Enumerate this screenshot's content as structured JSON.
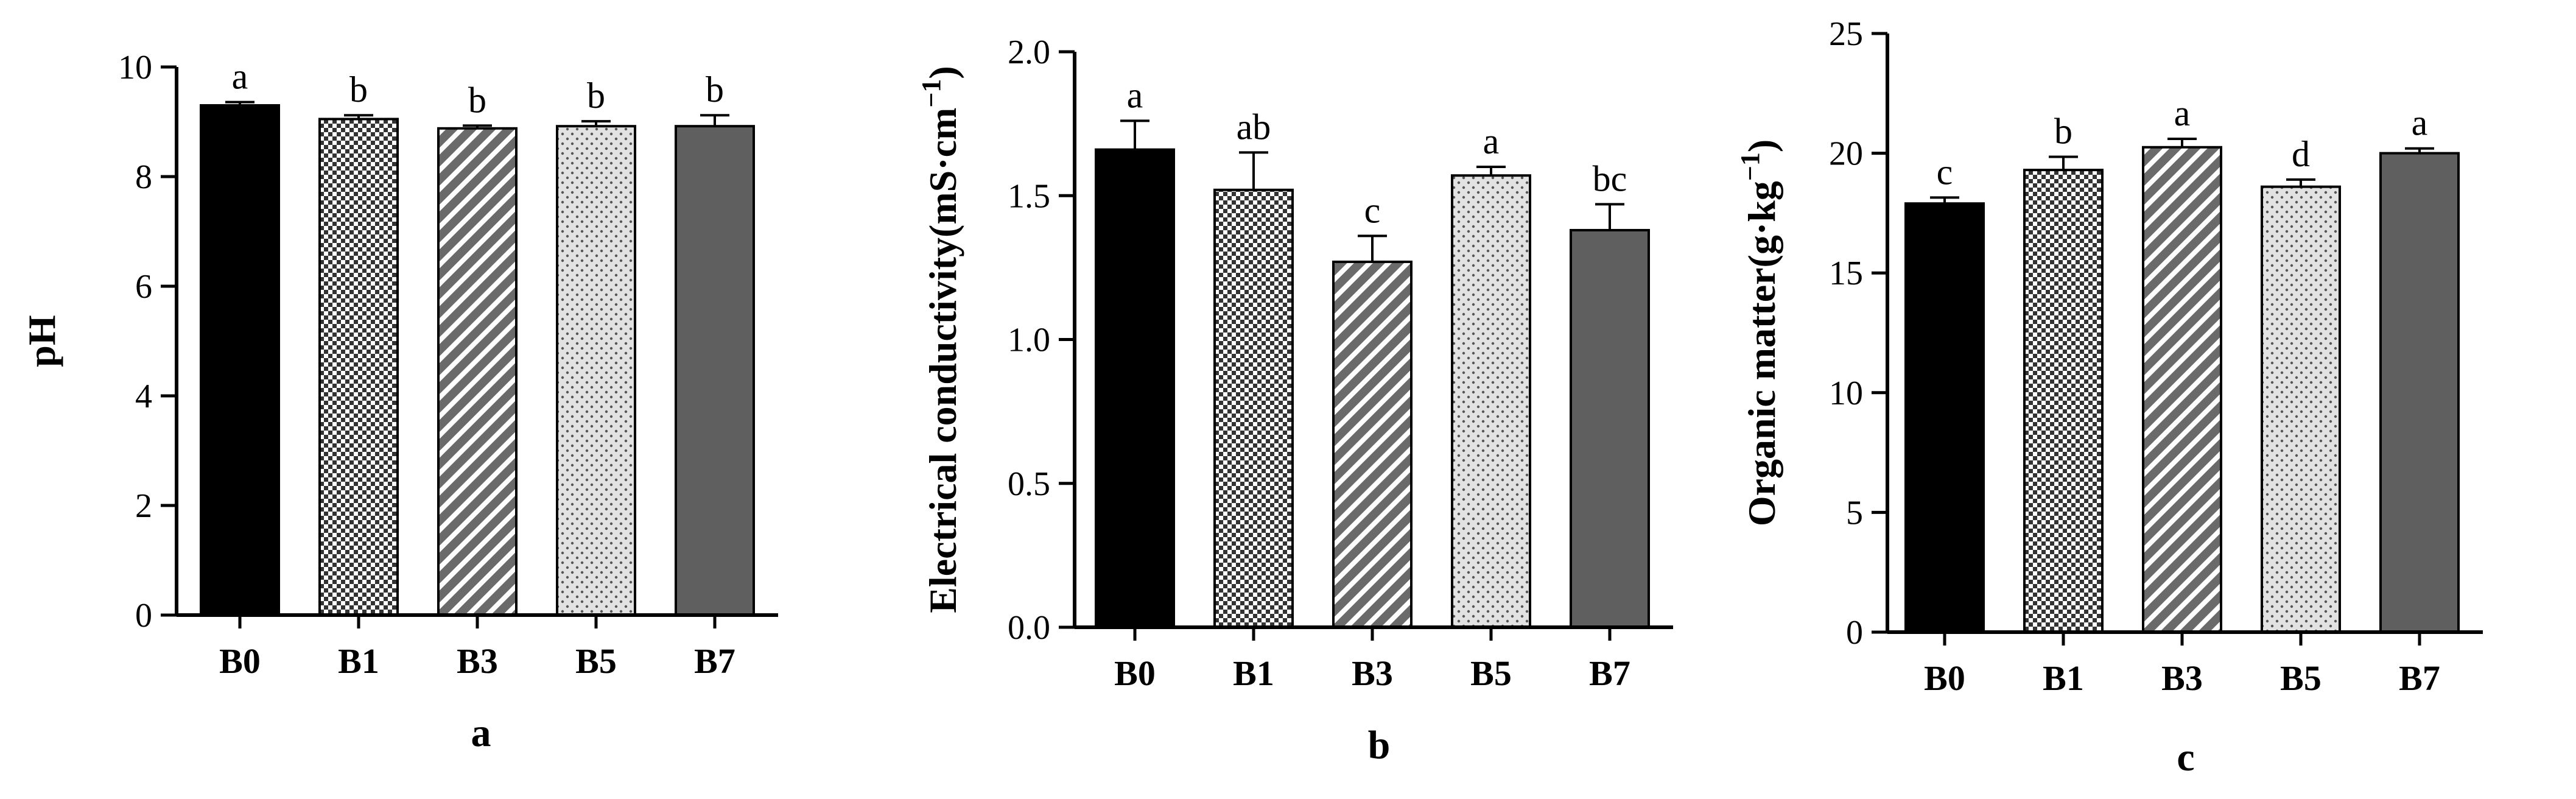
{
  "chart_data": [
    {
      "type": "bar",
      "panel_label": "a",
      "ylabel": "pH",
      "ylabel_sup": "",
      "ylabel_suffix": "",
      "ylim": [
        0,
        10
      ],
      "yticks": [
        0,
        2,
        4,
        6,
        8,
        10
      ],
      "categories": [
        "B0",
        "B1",
        "B3",
        "B5",
        "B7"
      ],
      "values": [
        9.3,
        9.05,
        8.88,
        8.92,
        8.92
      ],
      "errors": [
        0.06,
        0.07,
        0.05,
        0.09,
        0.2
      ],
      "significance": [
        "a",
        "b",
        "b",
        "b",
        "b"
      ],
      "grid": false
    },
    {
      "type": "bar",
      "panel_label": "b",
      "ylabel": "Electrical conductivity(mS·cm",
      "ylabel_sup": "−1",
      "ylabel_suffix": ")",
      "ylim": [
        0,
        2.0
      ],
      "yticks": [
        0.0,
        0.5,
        1.0,
        1.5,
        2.0
      ],
      "categories": [
        "B0",
        "B1",
        "B3",
        "B5",
        "B7"
      ],
      "values": [
        1.66,
        1.52,
        1.27,
        1.57,
        1.38
      ],
      "errors": [
        0.1,
        0.13,
        0.09,
        0.03,
        0.09
      ],
      "significance": [
        "a",
        "ab",
        "c",
        "a",
        "bc"
      ],
      "grid": false
    },
    {
      "type": "bar",
      "panel_label": "c",
      "ylabel": "Organic matter(g·kg",
      "ylabel_sup": "−1",
      "ylabel_suffix": ")",
      "ylim": [
        0,
        25
      ],
      "yticks": [
        0,
        5,
        10,
        15,
        20,
        25
      ],
      "categories": [
        "B0",
        "B1",
        "B3",
        "B5",
        "B7"
      ],
      "values": [
        17.9,
        19.3,
        20.25,
        18.6,
        20.0
      ],
      "errors": [
        0.25,
        0.55,
        0.35,
        0.3,
        0.2
      ],
      "significance": [
        "c",
        "b",
        "a",
        "d",
        "a"
      ],
      "grid": false
    }
  ],
  "bar_fills": [
    "solid-black",
    "checker",
    "diagonal-stripes",
    "dots",
    "solid-gray"
  ],
  "colors": {
    "black": "#000000",
    "gray": "#5f5f5f",
    "light": "#e8e8e8"
  }
}
